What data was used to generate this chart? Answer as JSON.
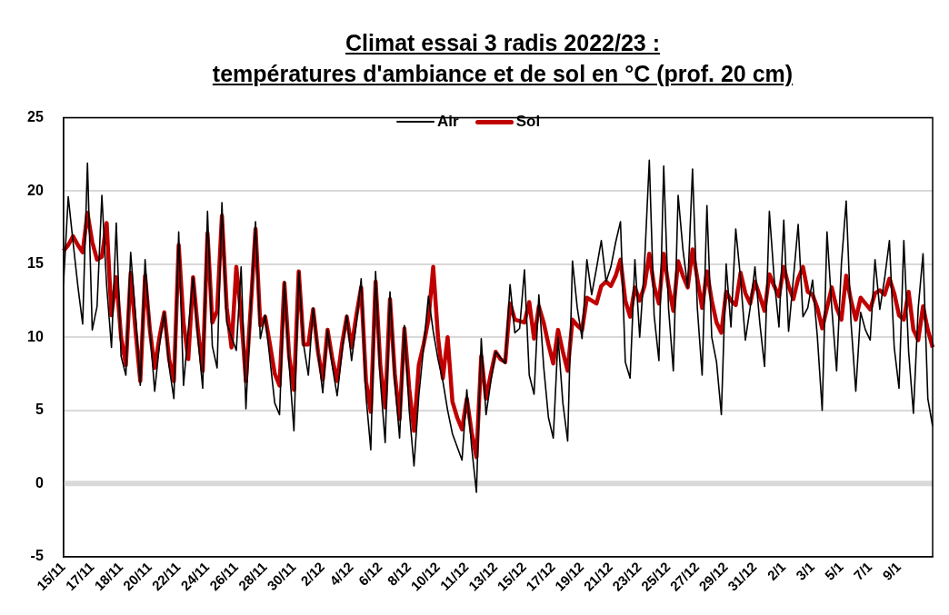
{
  "chart_data": {
    "type": "line",
    "title": "Climat essai 3 radis 2022/23 :",
    "subtitle": "températures d'ambiance et de sol en °C (prof. 20 cm)",
    "categories": [
      "15/11",
      null,
      null,
      null,
      null,
      null,
      "17/11",
      null,
      null,
      null,
      null,
      null,
      "18/11",
      null,
      null,
      null,
      null,
      null,
      "20/11",
      null,
      null,
      null,
      null,
      null,
      "22/11",
      null,
      null,
      null,
      null,
      null,
      "24/11",
      null,
      null,
      null,
      null,
      null,
      "26/11",
      null,
      null,
      null,
      null,
      null,
      "28/11",
      null,
      null,
      null,
      null,
      null,
      "30/11",
      null,
      null,
      null,
      null,
      null,
      "2/12",
      null,
      null,
      null,
      null,
      null,
      "4/12",
      null,
      null,
      null,
      null,
      null,
      "6/12",
      null,
      null,
      null,
      null,
      null,
      "8/12",
      null,
      null,
      null,
      null,
      null,
      "10/12",
      null,
      null,
      null,
      null,
      null,
      "11/12",
      null,
      null,
      null,
      null,
      null,
      "13/12",
      null,
      null,
      null,
      null,
      null,
      "15/12",
      null,
      null,
      null,
      null,
      null,
      "17/12",
      null,
      null,
      null,
      null,
      null,
      "19/12",
      null,
      null,
      null,
      null,
      null,
      "21/12",
      null,
      null,
      null,
      null,
      null,
      "23/12",
      null,
      null,
      null,
      null,
      null,
      "25/12",
      null,
      null,
      null,
      null,
      null,
      "27/12",
      null,
      null,
      null,
      null,
      null,
      "29/12",
      null,
      null,
      null,
      null,
      null,
      "31/12",
      null,
      null,
      null,
      null,
      null,
      "2/1",
      null,
      null,
      null,
      null,
      null,
      "3/1",
      null,
      null,
      null,
      null,
      null,
      "5/1",
      null,
      null,
      null,
      null,
      null,
      "7/1",
      null,
      null,
      null,
      null,
      null,
      "9/1",
      null,
      null,
      null,
      null,
      null,
      null,
      null
    ],
    "ylim": [
      -5,
      25
    ],
    "yticks": [
      -5,
      0,
      5,
      10,
      15,
      20,
      25
    ],
    "grid": "y",
    "legend": "top",
    "marker": "none",
    "ref_lines": [
      {
        "axis": "y",
        "value": 0,
        "color": "#d9d9d9"
      }
    ],
    "series": [
      {
        "name": "Air",
        "color": "#000000",
        "values": [
          13.6,
          19.6,
          16.5,
          13.5,
          10.9,
          21.9,
          10.5,
          12.1,
          19.7,
          13.5,
          9.3,
          17.8,
          8.7,
          7.4,
          15.8,
          11.5,
          6.7,
          15.3,
          10.5,
          6.3,
          9.5,
          11.7,
          8.0,
          5.8,
          17.2,
          6.7,
          10.5,
          14.1,
          10.0,
          6.5,
          18.6,
          9.4,
          7.9,
          19.2,
          11.0,
          10.0,
          9.1,
          14.8,
          5.1,
          12.0,
          17.9,
          9.9,
          11.5,
          8.5,
          5.5,
          4.7,
          13.8,
          8.1,
          3.6,
          14.5,
          9.5,
          7.4,
          12.0,
          9.0,
          6.2,
          10.5,
          8.0,
          6.0,
          9.0,
          11.5,
          8.4,
          11.0,
          14.0,
          6.0,
          2.3,
          14.5,
          7.0,
          2.8,
          13.1,
          7.0,
          3.1,
          10.8,
          5.0,
          1.2,
          6.0,
          9.3,
          12.8,
          10.4,
          8.5,
          7.0,
          5.0,
          3.4,
          2.5,
          1.6,
          6.4,
          2.5,
          -0.6,
          9.9,
          4.7,
          7.0,
          9.0,
          8.6,
          8.2,
          13.6,
          10.3,
          10.6,
          14.6,
          7.4,
          6.1,
          12.9,
          8.0,
          4.5,
          3.1,
          10.0,
          5.5,
          2.9,
          15.2,
          12.0,
          9.9,
          15.3,
          12.9,
          14.7,
          16.6,
          13.8,
          14.8,
          16.5,
          17.9,
          8.3,
          7.2,
          15.3,
          10.0,
          15.0,
          22.1,
          11.5,
          8.4,
          21.7,
          12.0,
          7.7,
          19.7,
          16.0,
          13.4,
          21.5,
          12.0,
          7.4,
          19.0,
          10.0,
          8.3,
          4.7,
          15.0,
          10.7,
          17.4,
          14.0,
          9.8,
          12.0,
          14.8,
          11.0,
          8.0,
          18.6,
          14.0,
          10.7,
          18.0,
          10.4,
          14.0,
          17.7,
          11.4,
          12.0,
          13.9,
          10.0,
          5.0,
          17.2,
          12.0,
          7.7,
          15.0,
          19.3,
          11.0,
          6.3,
          11.7,
          10.5,
          9.8,
          15.3,
          11.9,
          14.0,
          16.6,
          9.3,
          6.5,
          16.6,
          9.0,
          4.8,
          12.0,
          15.7,
          5.8,
          3.9
        ]
      },
      {
        "name": "Sol",
        "color": "#c00000",
        "values": [
          15.9,
          16.3,
          16.9,
          16.3,
          15.8,
          18.5,
          16.5,
          15.3,
          15.5,
          17.8,
          11.5,
          14.1,
          10.0,
          8.1,
          14.4,
          10.5,
          7.0,
          14.2,
          10.5,
          7.9,
          10.0,
          11.7,
          8.5,
          7.0,
          16.3,
          11.0,
          8.5,
          14.1,
          10.5,
          7.7,
          17.1,
          11.0,
          11.8,
          18.3,
          12.0,
          9.3,
          14.8,
          11.5,
          7.0,
          12.0,
          17.4,
          10.8,
          11.4,
          9.5,
          7.5,
          6.7,
          13.7,
          8.7,
          6.4,
          14.5,
          9.5,
          9.5,
          11.9,
          9.0,
          7.1,
          10.5,
          8.5,
          7.0,
          9.5,
          11.4,
          9.3,
          11.5,
          13.4,
          7.0,
          4.9,
          13.8,
          8.0,
          5.2,
          12.6,
          7.5,
          4.4,
          10.6,
          6.5,
          3.6,
          8.1,
          9.5,
          11.2,
          14.8,
          10.0,
          7.2,
          10.0,
          5.6,
          4.5,
          3.7,
          5.8,
          3.5,
          1.8,
          8.7,
          5.8,
          7.5,
          9.0,
          8.5,
          8.3,
          12.3,
          11.2,
          11.1,
          11.0,
          12.4,
          9.9,
          12.1,
          11.0,
          9.5,
          8.2,
          10.5,
          9.0,
          7.7,
          11.2,
          10.8,
          10.5,
          12.7,
          12.5,
          12.3,
          13.5,
          13.8,
          13.5,
          14.2,
          15.3,
          12.5,
          11.4,
          13.4,
          12.5,
          13.5,
          15.7,
          13.5,
          12.3,
          15.7,
          13.5,
          11.8,
          15.2,
          14.2,
          13.4,
          16.0,
          14.0,
          12.0,
          14.5,
          12.5,
          11.0,
          10.3,
          13.1,
          12.5,
          12.2,
          14.4,
          13.0,
          12.3,
          13.8,
          12.8,
          11.8,
          14.3,
          13.5,
          12.8,
          14.8,
          13.5,
          12.6,
          14.0,
          14.8,
          13.1,
          12.9,
          12.0,
          10.6,
          12.0,
          13.4,
          12.0,
          11.2,
          14.2,
          12.5,
          11.2,
          12.7,
          12.3,
          11.9,
          13.0,
          13.2,
          12.9,
          14.0,
          13.0,
          11.5,
          11.2,
          13.1,
          10.5,
          9.8,
          12.1,
          10.5,
          9.3
        ]
      }
    ]
  }
}
